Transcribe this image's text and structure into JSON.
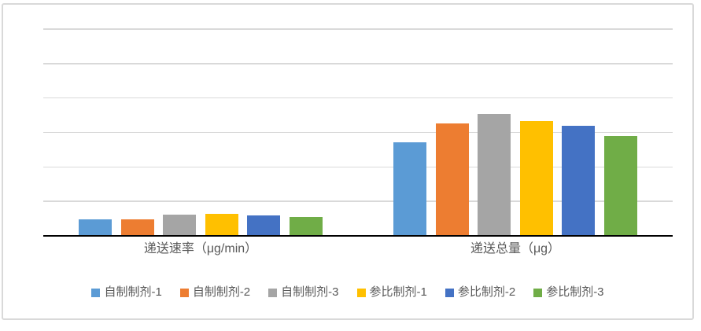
{
  "chart_data": {
    "type": "bar",
    "title": "",
    "categories": [
      "递送速率（μg/min）",
      "递送总量（μg）"
    ],
    "series": [
      {
        "name": "自制制剂-1",
        "color": "#5B9BD5",
        "values": [
          0.47,
          2.71
        ]
      },
      {
        "name": "自制制剂-2",
        "color": "#ED7D31",
        "values": [
          0.48,
          3.27
        ]
      },
      {
        "name": "自制制剂-3",
        "color": "#A5A5A5",
        "values": [
          0.62,
          3.54
        ]
      },
      {
        "name": "参比制剂-1",
        "color": "#FFC000",
        "values": [
          0.64,
          3.34
        ]
      },
      {
        "name": "参比制剂-2",
        "color": "#4472C4",
        "values": [
          0.59,
          3.2
        ]
      },
      {
        "name": "参比制剂-3",
        "color": "#70AD47",
        "values": [
          0.55,
          2.9
        ]
      }
    ],
    "ylim": [
      0,
      6
    ],
    "gridline_count": 6,
    "y_tick_labels_visible": false,
    "grid": "horizontal",
    "legend_position": "bottom",
    "colors": {
      "gridline": "#D9D9D9",
      "axis": "#000000",
      "text": "#595959",
      "panel_border": "#D9D9D9",
      "background": "#FFFFFF"
    }
  }
}
